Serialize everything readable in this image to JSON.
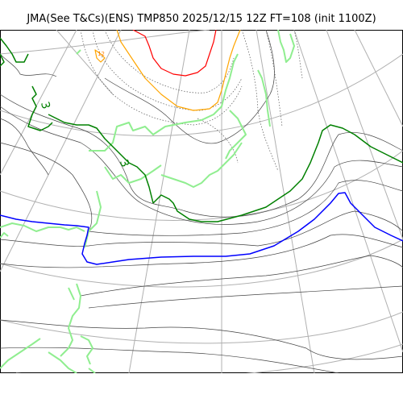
{
  "title": "JMA(See T&Cs)(ENS) TMP850 2025/12/15 12Z FT=108 (init 1100Z)",
  "map": {
    "variable": "TMP850",
    "contour_labels": [
      {
        "text": "3",
        "color": "#008000"
      },
      {
        "text": "3",
        "color": "#008000"
      },
      {
        "text": "12",
        "color": "#ff8000"
      }
    ],
    "colors": {
      "coastline": "#90ee90",
      "graticule": "#b0b0b0",
      "thin_contour": "#444444",
      "dotted_contour": "#555555",
      "contour_3": "#008000",
      "blue_contour": "#0000ff",
      "orange_contour": "#ffa500",
      "red_contour": "#ff0000"
    }
  }
}
